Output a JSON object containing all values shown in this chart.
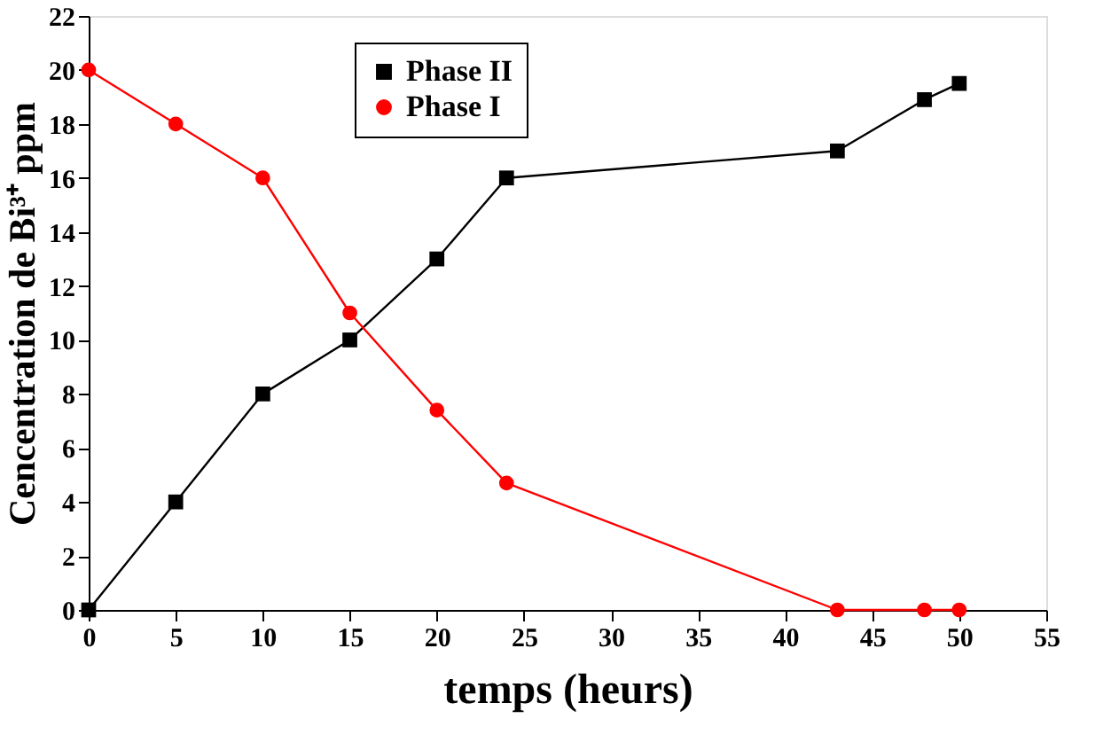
{
  "chart_data": {
    "type": "line",
    "xlabel": "temps (heurs)",
    "ylabel": "Cencentration de Bi³⁺ ppm",
    "x": [
      0,
      5,
      10,
      15,
      20,
      24,
      43,
      48,
      50
    ],
    "series": [
      {
        "name": "Phase II",
        "color": "#000000",
        "marker": "square",
        "values": [
          0,
          4,
          8,
          10,
          13,
          16,
          17,
          18.9,
          19.5
        ]
      },
      {
        "name": "Phase I",
        "color": "#ff0000",
        "marker": "circle",
        "values": [
          20,
          18,
          16,
          11,
          7.4,
          4.7,
          0,
          0,
          0
        ]
      }
    ],
    "xlim": [
      0,
      55
    ],
    "xticks": [
      0,
      5,
      10,
      15,
      20,
      25,
      30,
      35,
      40,
      45,
      50,
      55
    ],
    "ylim": [
      0,
      22
    ],
    "yticks": [
      0,
      2,
      4,
      6,
      8,
      10,
      12,
      14,
      16,
      18,
      20,
      22
    ],
    "grid": false,
    "legend": "top",
    "line_style": "solid"
  }
}
